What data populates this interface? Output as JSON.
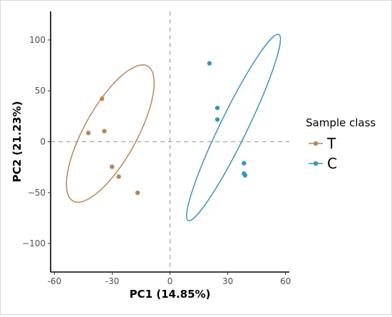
{
  "chart_data": {
    "type": "scatter",
    "xlabel": "PC1 (14.85%)",
    "ylabel": "PC2 (21.23%)",
    "xlim": [
      -62,
      62
    ],
    "ylim": [
      -128,
      128
    ],
    "xticks": [
      -60,
      -30,
      0,
      30,
      60
    ],
    "yticks": [
      100,
      50,
      0,
      -50,
      -100
    ],
    "grid": false,
    "reference_lines": {
      "x": 0,
      "y": 0,
      "style": "dashed"
    },
    "legend": {
      "title": "Sample class",
      "position": "right"
    },
    "series": [
      {
        "name": "T",
        "color": "#b8865b",
        "points": [
          {
            "x": -35.3,
            "y": 42.2
          },
          {
            "x": -42.4,
            "y": 8.6
          },
          {
            "x": -34.1,
            "y": 10.4
          },
          {
            "x": -30.1,
            "y": -24.6
          },
          {
            "x": -26.6,
            "y": -34.3
          },
          {
            "x": -16.8,
            "y": -50.2
          }
        ],
        "ellipse": {
          "cx": -31,
          "cy": 8,
          "rx": 108,
          "ry": 37,
          "angle_deg": -61
        }
      },
      {
        "name": "C",
        "color": "#3d93c0",
        "points": [
          {
            "x": 20.5,
            "y": 77.0
          },
          {
            "x": 24.6,
            "y": 33.2
          },
          {
            "x": 24.6,
            "y": 21.8
          },
          {
            "x": 38.4,
            "y": -21.1
          },
          {
            "x": 38.4,
            "y": -31.3
          },
          {
            "x": 39.0,
            "y": -33.0
          }
        ],
        "ellipse": {
          "cx": 33,
          "cy": 14,
          "rx": 145,
          "ry": 19,
          "angle_deg": -64
        }
      }
    ]
  }
}
